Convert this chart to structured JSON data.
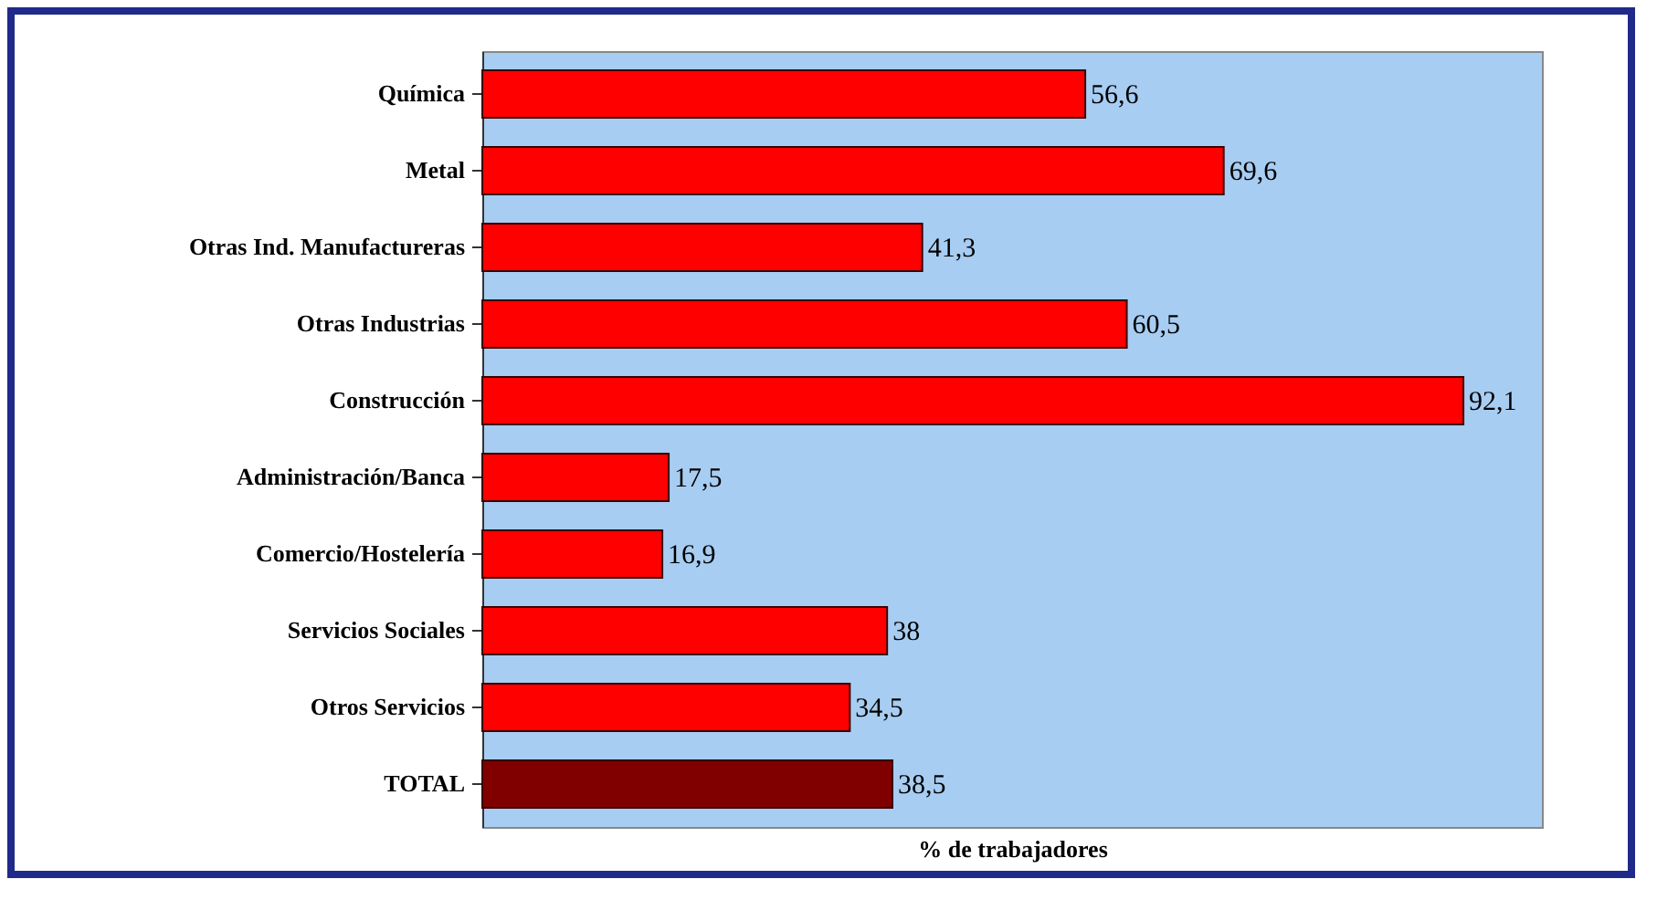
{
  "chart_data": {
    "type": "bar",
    "orientation": "horizontal",
    "xlabel": "% de trabajadores",
    "categories": [
      "Química",
      "Metal",
      "Otras Ind. Manufactureras",
      "Otras Industrias",
      "Construcción",
      "Administración/Banca",
      "Comercio/Hostelería",
      "Servicios Sociales",
      "Otros Servicios",
      "TOTAL"
    ],
    "values": [
      56.6,
      69.6,
      41.3,
      60.5,
      92.1,
      17.5,
      16.9,
      38,
      34.5,
      38.5
    ],
    "colors": [
      "#ff0000",
      "#ff0000",
      "#ff0000",
      "#ff0000",
      "#ff0000",
      "#ff0000",
      "#ff0000",
      "#ff0000",
      "#ff0000",
      "#800000"
    ],
    "value_labels": [
      "56,6",
      "69,6",
      "41,3",
      "60,5",
      "92,1",
      "17,5",
      "16,9",
      "38",
      "34,5",
      "38,5"
    ],
    "grid": false
  }
}
